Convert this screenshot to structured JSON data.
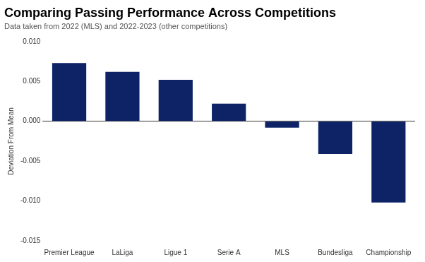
{
  "chart_data": {
    "type": "bar",
    "title": "Comparing Passing Performance Across Competitions",
    "subtitle": "Data taken from 2022 (MLS) and 2022-2023 (other competitions)",
    "y_label": "Deviation From Mean",
    "categories": [
      "Premier League",
      "LaLiga",
      "Ligue 1",
      "Serie A",
      "MLS",
      "Bundesliga",
      "Championship"
    ],
    "values": [
      0.0073,
      0.0062,
      0.0052,
      0.0022,
      -0.0008,
      -0.0041,
      -0.0102
    ],
    "color": "#0d2366",
    "ylim": [
      -0.015,
      0.01
    ],
    "yticks": [
      -0.015,
      {
        "value": -0.01,
        "label": "-0.010"
      },
      -0.005,
      {
        "value": 0,
        "label": "0.000"
      },
      0.005,
      {
        "value": 0.01,
        "label": "0.010"
      }
    ],
    "grid": false
  }
}
